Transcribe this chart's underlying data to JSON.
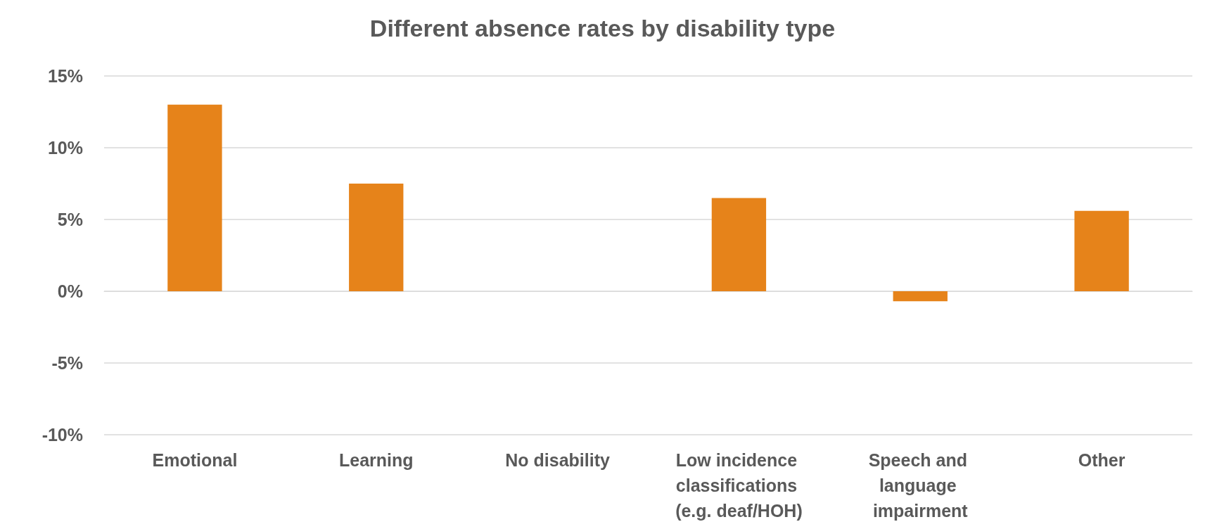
{
  "chart_data": {
    "type": "bar",
    "title": "Different absence rates by disability type",
    "categories": [
      "Emotional",
      "Learning",
      "No disability",
      "Low incidence classifications (e.g. deaf/HOH)",
      "Speech and language impairment",
      "Other"
    ],
    "values": [
      13,
      7.5,
      0,
      6.5,
      -0.7,
      5.6
    ],
    "color": "#e6831a",
    "ylim": [
      -10,
      15
    ],
    "yticks": [
      {
        "value": -10,
        "label": "-10%"
      },
      {
        "value": -5,
        "label": "-5%"
      },
      {
        "value": 0,
        "label": "0%"
      },
      {
        "value": 5,
        "label": "5%"
      },
      {
        "value": 10,
        "label": "10%"
      },
      {
        "value": 15,
        "label": "15%"
      }
    ],
    "grid": "y"
  }
}
